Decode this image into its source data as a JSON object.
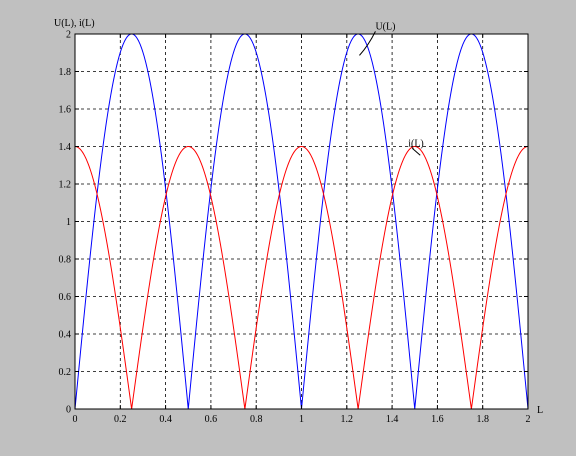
{
  "chart_data": {
    "type": "line",
    "title": "",
    "ylabel": "U(L), i(L)",
    "xlabel": "L",
    "xlim": [
      0,
      2
    ],
    "ylim": [
      0,
      2
    ],
    "x_ticks": [
      0,
      0.2,
      0.4,
      0.6,
      0.8,
      1,
      1.2,
      1.4,
      1.6,
      1.8,
      2
    ],
    "x_tick_labels": [
      "0",
      "0.2",
      "0.4",
      "0.6",
      "0.8",
      "1",
      "1.2",
      "1.4",
      "1.6",
      "1.8",
      "2"
    ],
    "y_ticks": [
      0,
      0.2,
      0.4,
      0.6,
      0.8,
      1,
      1.2,
      1.4,
      1.6,
      1.8,
      2
    ],
    "y_tick_labels": [
      "0",
      "0.2",
      "0.4",
      "0.6",
      "0.8",
      "1",
      "1.2",
      "1.4",
      "1.6",
      "1.8",
      "2"
    ],
    "grid": true,
    "background_color": "#c0c0c0",
    "plot_area_color": "#ffffff",
    "series": [
      {
        "name": "U(L)",
        "color": "#0000ff",
        "x": [
          0,
          0.05,
          0.1,
          0.15,
          0.2,
          0.25,
          0.3,
          0.35,
          0.4,
          0.45,
          0.5,
          0.55,
          0.6,
          0.65,
          0.7,
          0.75,
          0.8,
          0.85,
          0.9,
          0.95,
          1,
          1.05,
          1.1,
          1.15,
          1.2,
          1.25,
          1.3,
          1.35,
          1.4,
          1.45,
          1.5,
          1.55,
          1.6,
          1.65,
          1.7,
          1.75,
          1.8,
          1.85,
          1.9,
          1.95,
          2
        ],
        "y": [
          0,
          0.618,
          1.176,
          1.618,
          1.902,
          2,
          1.902,
          1.618,
          1.176,
          0.618,
          0,
          0.618,
          1.176,
          1.618,
          1.902,
          2,
          1.902,
          1.618,
          1.176,
          0.618,
          0,
          0.618,
          1.176,
          1.618,
          1.902,
          2,
          1.902,
          1.618,
          1.176,
          0.618,
          0,
          0.618,
          1.176,
          1.618,
          1.902,
          2,
          1.902,
          1.618,
          1.176,
          0.618,
          0
        ]
      },
      {
        "name": "i(L)",
        "color": "#ff0000",
        "x": [
          0,
          0.05,
          0.1,
          0.15,
          0.2,
          0.25,
          0.3,
          0.35,
          0.4,
          0.45,
          0.5,
          0.55,
          0.6,
          0.65,
          0.7,
          0.75,
          0.8,
          0.85,
          0.9,
          0.95,
          1,
          1.05,
          1.1,
          1.15,
          1.2,
          1.25,
          1.3,
          1.35,
          1.4,
          1.45,
          1.5,
          1.55,
          1.6,
          1.65,
          1.7,
          1.75,
          1.8,
          1.85,
          1.9,
          1.95,
          2
        ],
        "y": [
          1.4,
          1.331,
          1.133,
          0.823,
          0.433,
          0,
          0.433,
          0.823,
          1.133,
          1.331,
          1.4,
          1.331,
          1.133,
          0.823,
          0.433,
          0,
          0.433,
          0.823,
          1.133,
          1.331,
          1.4,
          1.331,
          1.133,
          0.823,
          0.433,
          0,
          0.433,
          0.823,
          1.133,
          1.331,
          1.4,
          1.331,
          1.133,
          0.823,
          0.433,
          0,
          0.433,
          0.823,
          1.133,
          1.331,
          1.4
        ]
      }
    ],
    "annotations": [
      {
        "text": "U(L)",
        "series": "U(L)",
        "x": 1.3,
        "y": 1.95
      },
      {
        "text": "i(L)",
        "series": "i(L)",
        "x": 1.48,
        "y": 1.38
      }
    ]
  }
}
